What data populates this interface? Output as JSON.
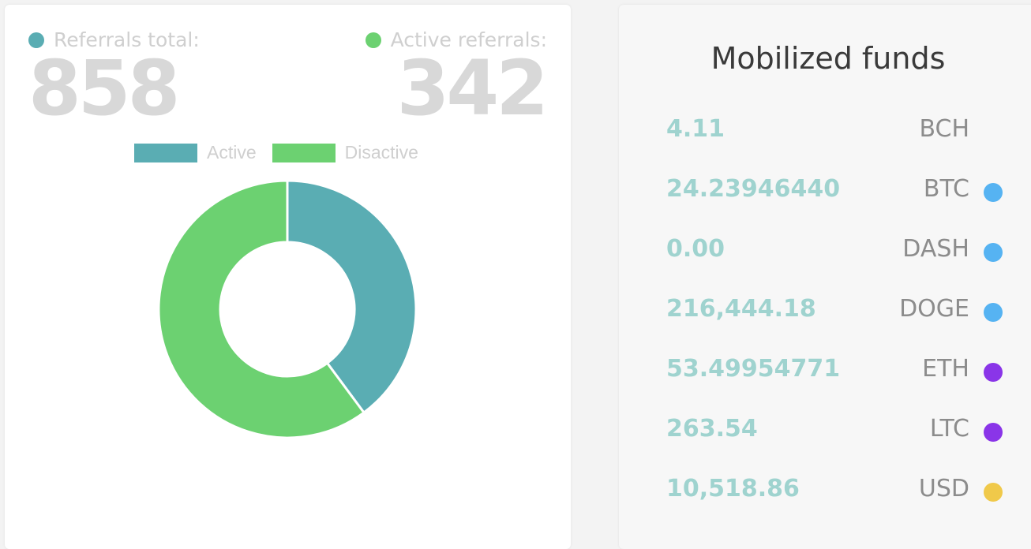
{
  "referrals": {
    "total_label": "Referrals total:",
    "total_value": "858",
    "active_label": "Active referrals:",
    "active_value": "342",
    "total_color": "#5aadb3",
    "active_color": "#6cd171"
  },
  "legend": {
    "active_label": "Active",
    "disactive_label": "Disactive"
  },
  "chart_data": {
    "type": "pie",
    "categories": [
      "Active",
      "Disactive"
    ],
    "values": [
      342,
      516
    ],
    "colors": [
      "#5aadb3",
      "#6cd171"
    ],
    "legend_position": "top"
  },
  "funds": {
    "title": "Mobilized funds",
    "items": [
      {
        "amount": "4.11",
        "currency": "BCH",
        "dot": ""
      },
      {
        "amount": "24.23946440",
        "currency": "BTC",
        "dot": "#56b3f2"
      },
      {
        "amount": "0.00",
        "currency": "DASH",
        "dot": "#56b3f2"
      },
      {
        "amount": "216,444.18",
        "currency": "DOGE",
        "dot": "#56b3f2"
      },
      {
        "amount": "53.49954771",
        "currency": "ETH",
        "dot": "#8a35e8"
      },
      {
        "amount": "263.54",
        "currency": "LTC",
        "dot": "#8a35e8"
      },
      {
        "amount": "10,518.86",
        "currency": "USD",
        "dot": "#f0c94a"
      }
    ]
  }
}
